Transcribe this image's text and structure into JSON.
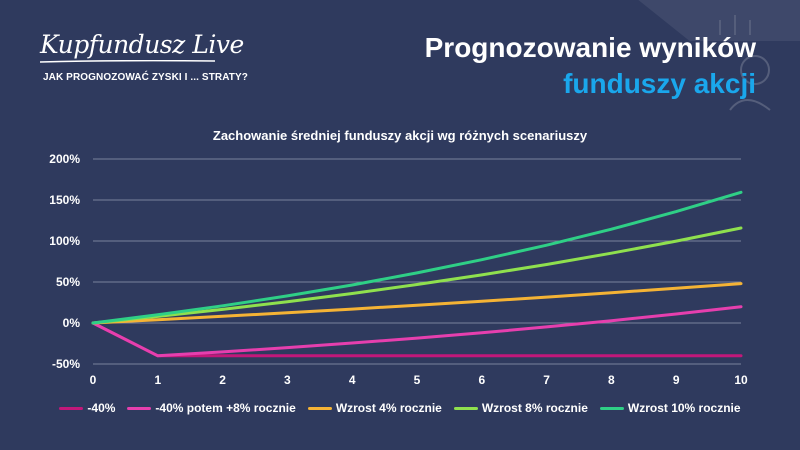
{
  "header": {
    "logo": "Kupfundusz Live",
    "subtitle": "JAK PROGNOZOWAĆ ZYSKI I ... STRATY?",
    "title_line1": "Prognozowanie wyników",
    "title_line2": "funduszy akcji"
  },
  "colors": {
    "background": "#2f3a5e",
    "accent": "#1aa7ec",
    "grid": "#7a829c"
  },
  "chart_data": {
    "type": "line",
    "title": "Zachowanie średniej funduszy akcji wg różnych scenariuszy",
    "x": [
      0,
      1,
      2,
      3,
      4,
      5,
      6,
      7,
      8,
      9,
      10
    ],
    "xlim": [
      0,
      10
    ],
    "ylim": [
      -50,
      200
    ],
    "y_ticks": [
      "-50%",
      "0%",
      "50%",
      "100%",
      "150%",
      "200%"
    ],
    "y_tick_values": [
      -50,
      0,
      50,
      100,
      150,
      200
    ],
    "x_ticks": [
      "0",
      "1",
      "2",
      "3",
      "4",
      "5",
      "6",
      "7",
      "8",
      "9",
      "10"
    ],
    "grid": true,
    "legend_position": "bottom",
    "series": [
      {
        "name": "-40%",
        "color": "#c2187a",
        "values": [
          0,
          -40,
          -40,
          -40,
          -40,
          -40,
          -40,
          -40,
          -40,
          -40,
          -40
        ]
      },
      {
        "name": "-40% potem +8% rocznie",
        "color": "#e63fae",
        "values": [
          0,
          -40,
          -35.2,
          -30,
          -24.4,
          -18.4,
          -11.9,
          -4.8,
          2.8,
          11,
          19.9
        ]
      },
      {
        "name": "Wzrost 4% rocznie",
        "color": "#f5b335",
        "values": [
          0,
          4,
          8.2,
          12.5,
          17,
          21.7,
          26.5,
          31.6,
          36.9,
          42.3,
          48
        ]
      },
      {
        "name": "Wzrost 8% rocznie",
        "color": "#8fe04e",
        "values": [
          0,
          8,
          16.6,
          26,
          36,
          46.9,
          58.7,
          71.4,
          85.1,
          99.9,
          115.9
        ]
      },
      {
        "name": "Wzrost 10% rocznie",
        "color": "#2fcf86",
        "values": [
          0,
          10,
          21,
          33.1,
          46.4,
          61.1,
          77.2,
          94.9,
          114.4,
          135.8,
          159.4
        ]
      }
    ]
  }
}
